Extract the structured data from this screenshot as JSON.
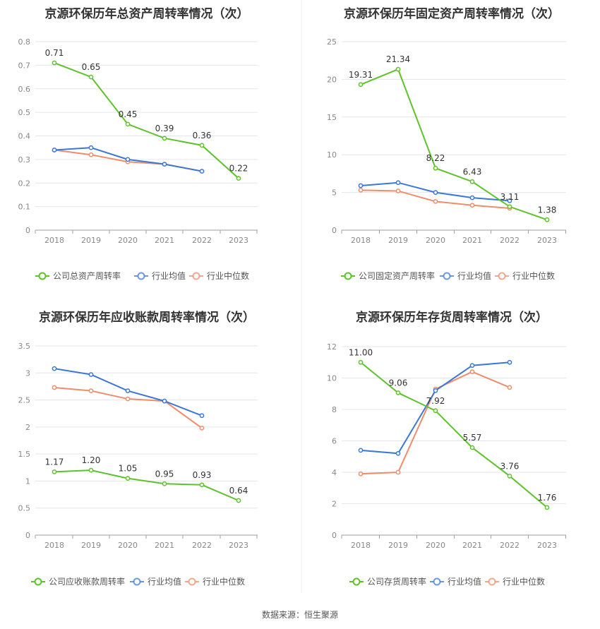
{
  "colors": {
    "company": "#5cc42a",
    "avg": "#3a78d8",
    "median": "#f08c6a"
  },
  "footer": {
    "source": "数据来源：恒生聚源"
  },
  "chart_data": [
    {
      "type": "line",
      "title": "京源环保历年总资产周转率情况（次）",
      "categories": [
        "2018",
        "2019",
        "2020",
        "2021",
        "2022",
        "2023"
      ],
      "ylim": [
        0,
        0.8
      ],
      "yticks": [
        "0",
        "0.1",
        "0.2",
        "0.3",
        "0.4",
        "0.5",
        "0.6",
        "0.7",
        "0.8"
      ],
      "series": [
        {
          "name": "公司总资产周转率",
          "key": "company",
          "values": [
            0.71,
            0.65,
            0.45,
            0.39,
            0.36,
            0.22
          ],
          "labels": [
            "0.71",
            "0.65",
            "0.45",
            "0.39",
            "0.36",
            "0.22"
          ]
        },
        {
          "name": "行业均值",
          "key": "avg",
          "values": [
            0.34,
            0.35,
            0.3,
            0.28,
            0.25,
            null
          ]
        },
        {
          "name": "行业中位数",
          "key": "median",
          "values": [
            0.34,
            0.32,
            0.29,
            0.28,
            0.25,
            null
          ]
        }
      ]
    },
    {
      "type": "line",
      "title": "京源环保历年固定资产周转率情况（次）",
      "categories": [
        "2018",
        "2019",
        "2020",
        "2021",
        "2022",
        "2023"
      ],
      "ylim": [
        0,
        25
      ],
      "yticks": [
        "0",
        "5",
        "10",
        "15",
        "20",
        "25"
      ],
      "series": [
        {
          "name": "公司固定资产周转率",
          "key": "company",
          "values": [
            19.31,
            21.34,
            8.22,
            6.43,
            3.11,
            1.38
          ],
          "labels": [
            "19.31",
            "21.34",
            "8.22",
            "6.43",
            "3.11",
            "1.38"
          ]
        },
        {
          "name": "行业均值",
          "key": "avg",
          "values": [
            5.9,
            6.3,
            5.0,
            4.3,
            3.9,
            null
          ]
        },
        {
          "name": "行业中位数",
          "key": "median",
          "values": [
            5.3,
            5.2,
            3.8,
            3.3,
            2.9,
            null
          ]
        }
      ]
    },
    {
      "type": "line",
      "title": "京源环保历年应收账款周转率情况（次）",
      "categories": [
        "2018",
        "2019",
        "2020",
        "2021",
        "2022",
        "2023"
      ],
      "ylim": [
        0,
        3.5
      ],
      "yticks": [
        "0",
        "0.5",
        "1",
        "1.5",
        "2",
        "2.5",
        "3",
        "3.5"
      ],
      "series": [
        {
          "name": "公司应收账款周转率",
          "key": "company",
          "values": [
            1.17,
            1.2,
            1.05,
            0.95,
            0.93,
            0.64
          ],
          "labels": [
            "1.17",
            "1.20",
            "1.05",
            "0.95",
            "0.93",
            "0.64"
          ]
        },
        {
          "name": "行业均值",
          "key": "avg",
          "values": [
            3.08,
            2.97,
            2.67,
            2.48,
            2.21,
            null
          ]
        },
        {
          "name": "行业中位数",
          "key": "median",
          "values": [
            2.73,
            2.67,
            2.52,
            2.48,
            1.98,
            null
          ]
        }
      ]
    },
    {
      "type": "line",
      "title": "京源环保历年存货周转率情况（次）",
      "categories": [
        "2018",
        "2019",
        "2020",
        "2021",
        "2022",
        "2023"
      ],
      "ylim": [
        0,
        12
      ],
      "yticks": [
        "0",
        "2",
        "4",
        "6",
        "8",
        "10",
        "12"
      ],
      "series": [
        {
          "name": "公司存货周转率",
          "key": "company",
          "values": [
            11.0,
            9.06,
            7.92,
            5.57,
            3.76,
            1.76
          ],
          "labels": [
            "11.00",
            "9.06",
            "7.92",
            "5.57",
            "3.76",
            "1.76"
          ]
        },
        {
          "name": "行业均值",
          "key": "avg",
          "values": [
            5.4,
            5.2,
            9.2,
            10.8,
            11.0,
            null
          ]
        },
        {
          "name": "行业中位数",
          "key": "median",
          "values": [
            3.9,
            4.0,
            9.3,
            10.4,
            9.4,
            null
          ]
        }
      ]
    }
  ]
}
